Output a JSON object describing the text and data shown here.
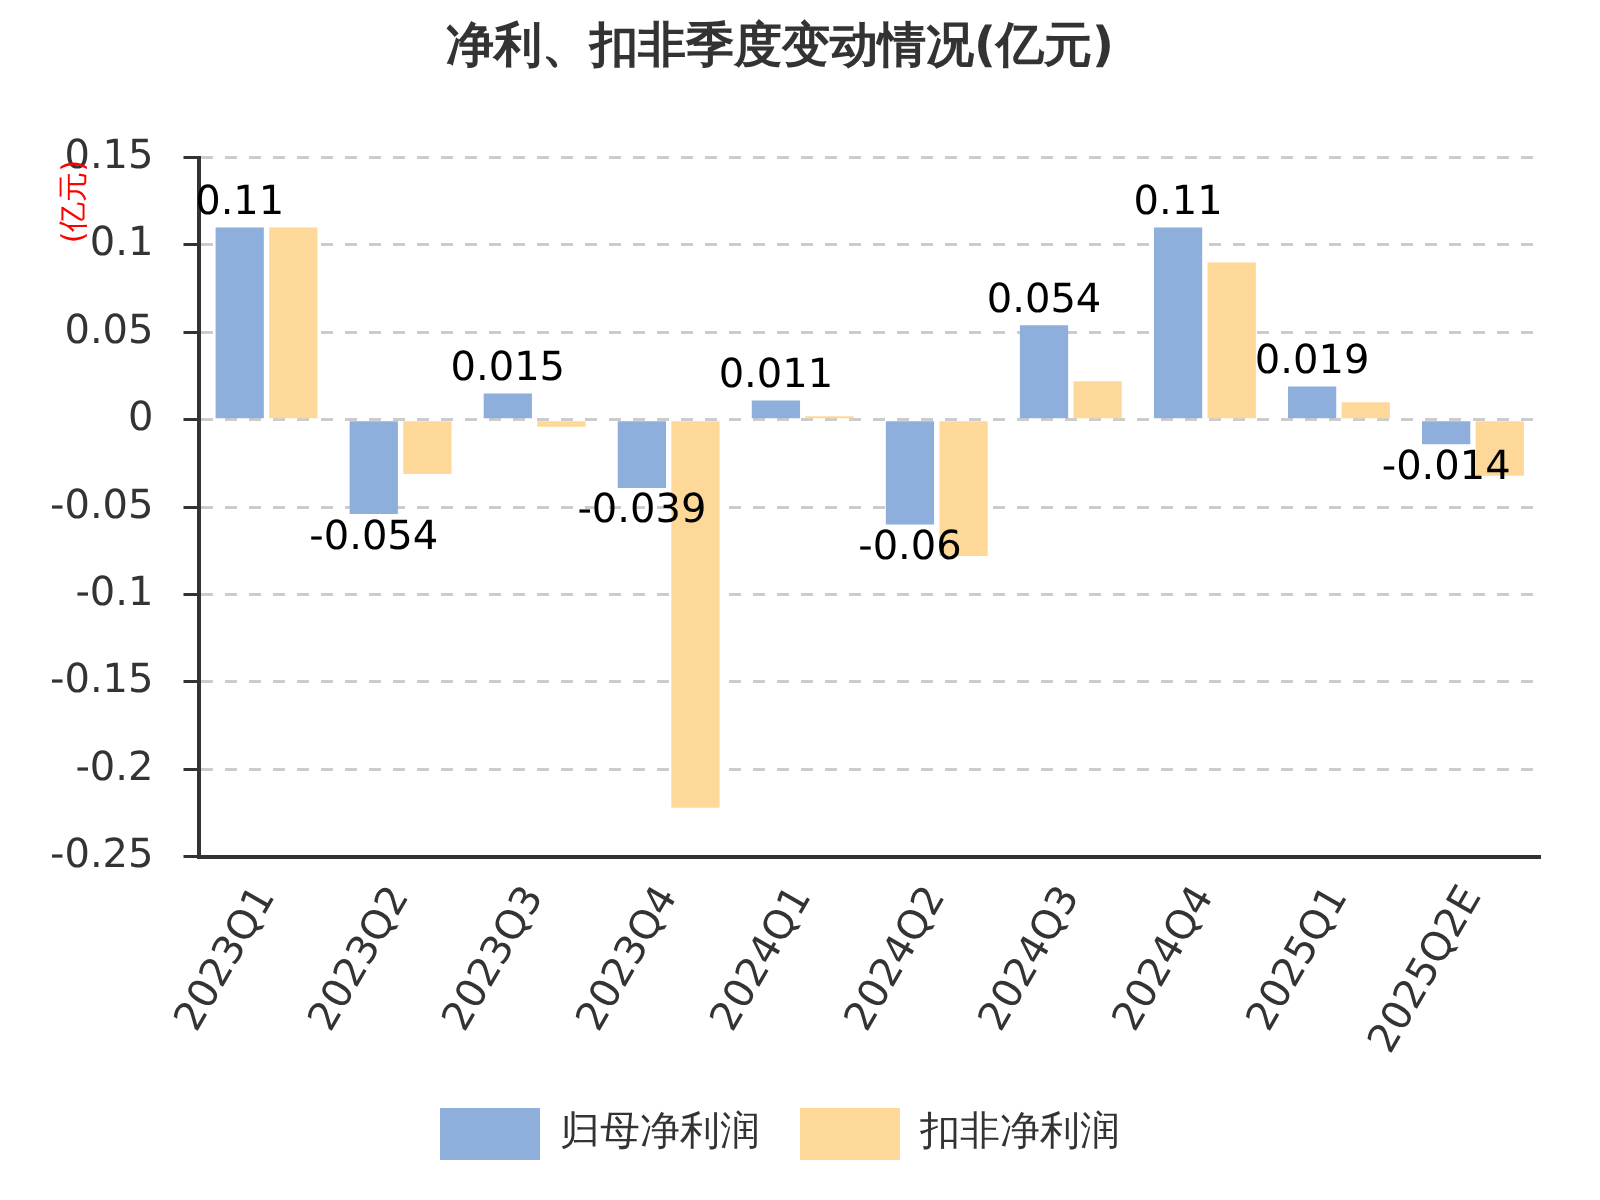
{
  "chart_data": {
    "type": "bar",
    "title": "净利、扣非季度变动情况(亿元)",
    "ylabel": "(亿元)",
    "categories": [
      "2023Q1",
      "2023Q2",
      "2023Q3",
      "2023Q4",
      "2024Q1",
      "2024Q2",
      "2024Q3",
      "2024Q4",
      "2025Q1",
      "2025Q2E"
    ],
    "series": [
      {
        "name": "归母净利润",
        "color": "#8eaedb",
        "values": [
          0.11,
          -0.054,
          0.015,
          -0.039,
          0.011,
          -0.06,
          0.054,
          0.11,
          0.019,
          -0.014
        ],
        "value_labels": [
          "0.11",
          "-0.054",
          "0.015",
          "-0.039",
          "0.011",
          "-0.06",
          "0.054",
          "0.11",
          "0.019",
          "-0.014"
        ]
      },
      {
        "name": "扣非净利润",
        "color": "#fdd898",
        "values": [
          0.11,
          -0.031,
          -0.004,
          -0.222,
          0.002,
          -0.078,
          0.022,
          0.09,
          0.01,
          -0.032
        ]
      }
    ],
    "ylim": [
      -0.25,
      0.15
    ],
    "yticks": [
      -0.25,
      -0.2,
      -0.15,
      -0.1,
      -0.05,
      0,
      0.05,
      0.1,
      0.15
    ],
    "grid": "y",
    "legend": "bottom"
  }
}
